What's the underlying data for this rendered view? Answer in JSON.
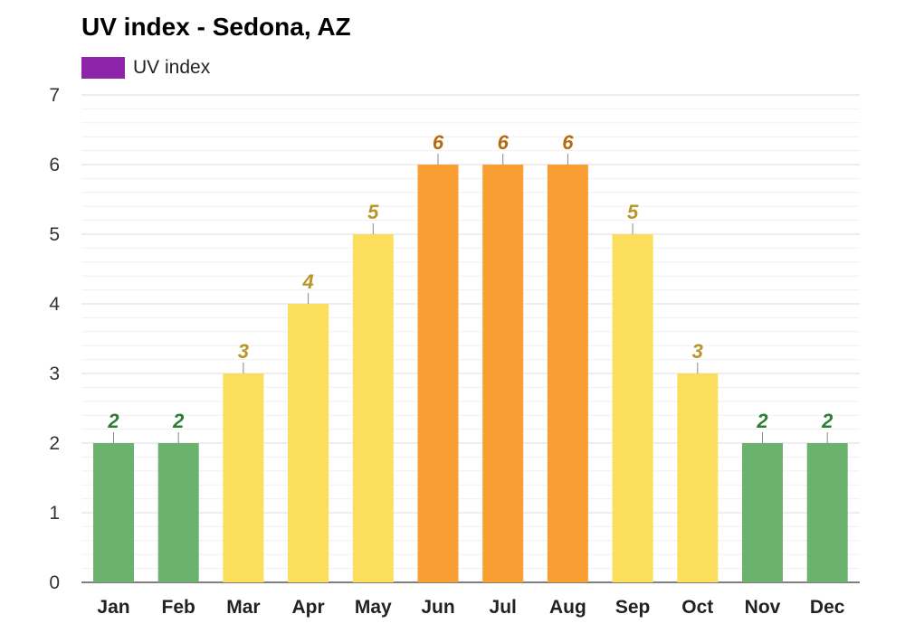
{
  "chart_data": {
    "type": "bar",
    "title": "UV index - Sedona, AZ",
    "legend": {
      "label": "UV index",
      "color": "#8e24aa",
      "placement": "top-left"
    },
    "categories": [
      "Jan",
      "Feb",
      "Mar",
      "Apr",
      "May",
      "Jun",
      "Jul",
      "Aug",
      "Sep",
      "Oct",
      "Nov",
      "Dec"
    ],
    "series": [
      {
        "name": "UV index",
        "values": [
          2,
          2,
          3,
          4,
          5,
          6,
          6,
          6,
          5,
          3,
          2,
          2
        ]
      }
    ],
    "ylim": [
      0,
      7
    ],
    "yticks": [
      "0",
      "1",
      "2",
      "3",
      "4",
      "5",
      "6",
      "7"
    ],
    "grid": true,
    "colors": {
      "low_bar": "#6ab26e",
      "low_label": "#2e7d32",
      "moderate_bar": "#fbdf5c",
      "moderate_label": "#b8962a",
      "high_bar": "#f99e33",
      "high_label": "#b86a10"
    }
  }
}
